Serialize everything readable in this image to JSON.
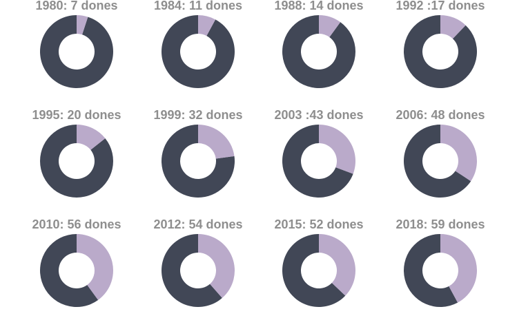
{
  "chart_data": {
    "type": "pie",
    "subtype": "donut-small-multiples",
    "colors": {
      "dones": "#baaaca",
      "rest": "#414756"
    },
    "panels": [
      {
        "label": "1980: 7 dones",
        "value": 7
      },
      {
        "label": "1984: 11 dones",
        "value": 11
      },
      {
        "label": "1988: 14 dones",
        "value": 14
      },
      {
        "label": "1992 :17 dones",
        "value": 17
      },
      {
        "label": "1995: 20 dones",
        "value": 20
      },
      {
        "label": "1999: 32 dones",
        "value": 32
      },
      {
        "label": "2003 :43 dones",
        "value": 43
      },
      {
        "label": "2006: 48 dones",
        "value": 48
      },
      {
        "label": "2010: 56 dones",
        "value": 56
      },
      {
        "label": "2012: 54 dones",
        "value": 54
      },
      {
        "label": "2015: 52 dones",
        "value": 52
      },
      {
        "label": "2018: 59 dones",
        "value": 59
      }
    ],
    "total_estimate": 140
  }
}
